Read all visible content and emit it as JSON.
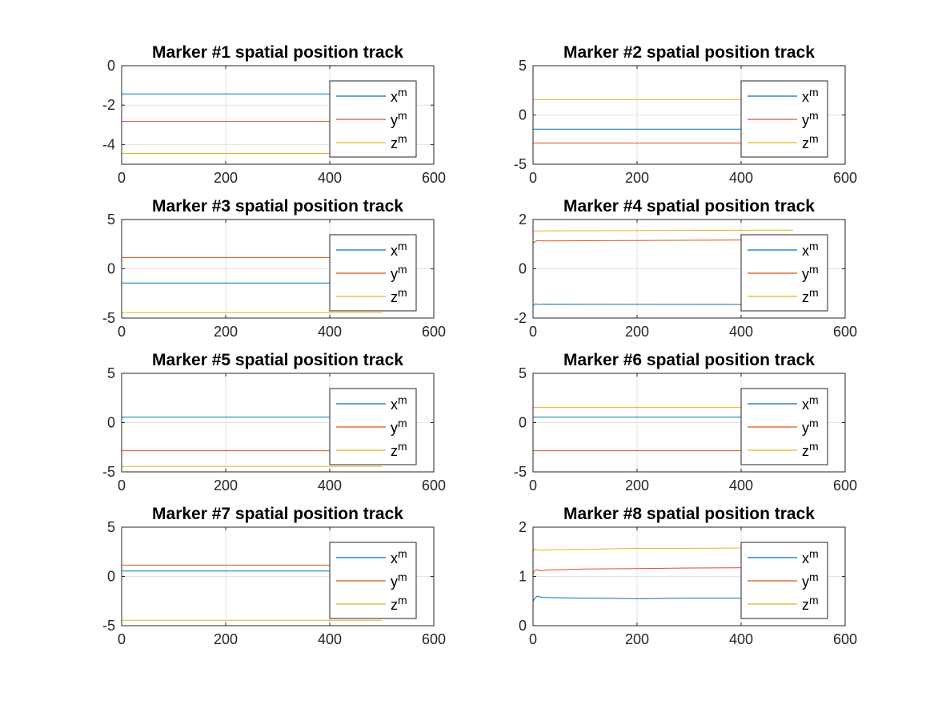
{
  "chart_data": [
    {
      "type": "line",
      "title": "Marker #1 spatial position track",
      "xlim": [
        0,
        600
      ],
      "ylim": [
        -5,
        0
      ],
      "xticks": [
        "0",
        "200",
        "400",
        "600"
      ],
      "yticks": [
        "0",
        "-2",
        "-4"
      ],
      "ytick_values": [
        0,
        -2,
        -4
      ],
      "grid": true,
      "legend_position": "right",
      "series": [
        {
          "name": "x",
          "name_superscript": "m",
          "color": "#0072BD",
          "x": [
            0,
            500
          ],
          "y": [
            -1.43,
            -1.43
          ]
        },
        {
          "name": "y",
          "name_superscript": "m",
          "color": "#D95319",
          "x": [
            0,
            500
          ],
          "y": [
            -2.83,
            -2.83
          ]
        },
        {
          "name": "z",
          "name_superscript": "m",
          "color": "#EDB120",
          "x": [
            0,
            500
          ],
          "y": [
            -4.45,
            -4.45
          ]
        }
      ]
    },
    {
      "type": "line",
      "title": "Marker #2 spatial position track",
      "xlim": [
        0,
        600
      ],
      "ylim": [
        -5,
        5
      ],
      "xticks": [
        "0",
        "200",
        "400",
        "600"
      ],
      "yticks": [
        "5",
        "0",
        "-5"
      ],
      "ytick_values": [
        5,
        0,
        -5
      ],
      "grid": true,
      "legend_position": "right",
      "series": [
        {
          "name": "x",
          "name_superscript": "m",
          "color": "#0072BD",
          "x": [
            0,
            500
          ],
          "y": [
            -1.45,
            -1.45
          ]
        },
        {
          "name": "y",
          "name_superscript": "m",
          "color": "#D95319",
          "x": [
            0,
            500
          ],
          "y": [
            -2.85,
            -2.85
          ]
        },
        {
          "name": "z",
          "name_superscript": "m",
          "color": "#EDB120",
          "x": [
            0,
            500
          ],
          "y": [
            1.55,
            1.55
          ]
        }
      ]
    },
    {
      "type": "line",
      "title": "Marker #3 spatial position track",
      "xlim": [
        0,
        600
      ],
      "ylim": [
        -5,
        5
      ],
      "xticks": [
        "0",
        "200",
        "400",
        "600"
      ],
      "yticks": [
        "5",
        "0",
        "-5"
      ],
      "ytick_values": [
        5,
        0,
        -5
      ],
      "grid": true,
      "legend_position": "right",
      "series": [
        {
          "name": "x",
          "name_superscript": "m",
          "color": "#0072BD",
          "x": [
            0,
            500
          ],
          "y": [
            -1.45,
            -1.45
          ]
        },
        {
          "name": "y",
          "name_superscript": "m",
          "color": "#D95319",
          "x": [
            0,
            500
          ],
          "y": [
            1.15,
            1.15
          ]
        },
        {
          "name": "z",
          "name_superscript": "m",
          "color": "#EDB120",
          "x": [
            0,
            500
          ],
          "y": [
            -4.45,
            -4.45
          ]
        }
      ]
    },
    {
      "type": "line",
      "title": "Marker #4 spatial position track",
      "xlim": [
        0,
        600
      ],
      "ylim": [
        -2,
        2
      ],
      "xticks": [
        "0",
        "200",
        "400",
        "600"
      ],
      "yticks": [
        "2",
        "0",
        "-2"
      ],
      "ytick_values": [
        2,
        0,
        -2
      ],
      "grid": true,
      "legend_position": "right",
      "series": [
        {
          "name": "x",
          "name_superscript": "m",
          "color": "#0072BD",
          "x": [
            0,
            5,
            10,
            20,
            500
          ],
          "y": [
            -1.5,
            -1.42,
            -1.45,
            -1.44,
            -1.45
          ]
        },
        {
          "name": "y",
          "name_superscript": "m",
          "color": "#D95319",
          "x": [
            0,
            5,
            10,
            20,
            500
          ],
          "y": [
            1.05,
            1.12,
            1.15,
            1.13,
            1.18
          ]
        },
        {
          "name": "z",
          "name_superscript": "m",
          "color": "#EDB120",
          "x": [
            0,
            5,
            10,
            20,
            500
          ],
          "y": [
            1.48,
            1.56,
            1.53,
            1.54,
            1.57
          ]
        }
      ]
    },
    {
      "type": "line",
      "title": "Marker #5 spatial position track",
      "xlim": [
        0,
        600
      ],
      "ylim": [
        -5,
        5
      ],
      "xticks": [
        "0",
        "200",
        "400",
        "600"
      ],
      "yticks": [
        "5",
        "0",
        "-5"
      ],
      "ytick_values": [
        5,
        0,
        -5
      ],
      "grid": true,
      "legend_position": "right",
      "series": [
        {
          "name": "x",
          "name_superscript": "m",
          "color": "#0072BD",
          "x": [
            0,
            500
          ],
          "y": [
            0.55,
            0.55
          ]
        },
        {
          "name": "y",
          "name_superscript": "m",
          "color": "#D95319",
          "x": [
            0,
            500
          ],
          "y": [
            -2.85,
            -2.85
          ]
        },
        {
          "name": "z",
          "name_superscript": "m",
          "color": "#EDB120",
          "x": [
            0,
            500
          ],
          "y": [
            -4.45,
            -4.45
          ]
        }
      ]
    },
    {
      "type": "line",
      "title": "Marker #6 spatial position track",
      "xlim": [
        0,
        600
      ],
      "ylim": [
        -5,
        5
      ],
      "xticks": [
        "0",
        "200",
        "400",
        "600"
      ],
      "yticks": [
        "5",
        "0",
        "-5"
      ],
      "ytick_values": [
        5,
        0,
        -5
      ],
      "grid": true,
      "legend_position": "right",
      "series": [
        {
          "name": "x",
          "name_superscript": "m",
          "color": "#0072BD",
          "x": [
            0,
            500
          ],
          "y": [
            0.55,
            0.55
          ]
        },
        {
          "name": "y",
          "name_superscript": "m",
          "color": "#D95319",
          "x": [
            0,
            500
          ],
          "y": [
            -2.85,
            -2.85
          ]
        },
        {
          "name": "z",
          "name_superscript": "m",
          "color": "#EDB120",
          "x": [
            0,
            500
          ],
          "y": [
            1.55,
            1.55
          ]
        }
      ]
    },
    {
      "type": "line",
      "title": "Marker #7 spatial position track",
      "xlim": [
        0,
        600
      ],
      "ylim": [
        -5,
        5
      ],
      "xticks": [
        "0",
        "200",
        "400",
        "600"
      ],
      "yticks": [
        "5",
        "0",
        "-5"
      ],
      "ytick_values": [
        5,
        0,
        -5
      ],
      "grid": true,
      "legend_position": "right",
      "series": [
        {
          "name": "x",
          "name_superscript": "m",
          "color": "#0072BD",
          "x": [
            0,
            500
          ],
          "y": [
            0.55,
            0.55
          ]
        },
        {
          "name": "y",
          "name_superscript": "m",
          "color": "#D95319",
          "x": [
            0,
            500
          ],
          "y": [
            1.15,
            1.15
          ]
        },
        {
          "name": "z",
          "name_superscript": "m",
          "color": "#EDB120",
          "x": [
            0,
            500
          ],
          "y": [
            -4.45,
            -4.45
          ]
        }
      ]
    },
    {
      "type": "line",
      "title": "Marker #8 spatial position track",
      "xlim": [
        0,
        600
      ],
      "ylim": [
        0,
        2
      ],
      "xticks": [
        "0",
        "200",
        "400",
        "600"
      ],
      "yticks": [
        "2",
        "1",
        "0"
      ],
      "ytick_values": [
        2,
        1,
        0
      ],
      "grid": true,
      "legend_position": "right",
      "series": [
        {
          "name": "x",
          "name_superscript": "m",
          "color": "#0072BD",
          "x": [
            0,
            3,
            8,
            15,
            25,
            100,
            200,
            300,
            500
          ],
          "y": [
            0.5,
            0.55,
            0.6,
            0.58,
            0.57,
            0.56,
            0.55,
            0.56,
            0.56
          ]
        },
        {
          "name": "y",
          "name_superscript": "m",
          "color": "#D95319",
          "x": [
            0,
            3,
            8,
            15,
            25,
            100,
            200,
            300,
            500
          ],
          "y": [
            1.05,
            1.12,
            1.14,
            1.11,
            1.13,
            1.15,
            1.16,
            1.17,
            1.18
          ]
        },
        {
          "name": "z",
          "name_superscript": "m",
          "color": "#EDB120",
          "x": [
            0,
            3,
            8,
            15,
            25,
            100,
            200,
            300,
            500
          ],
          "y": [
            1.5,
            1.56,
            1.54,
            1.53,
            1.54,
            1.55,
            1.57,
            1.57,
            1.58
          ]
        }
      ]
    }
  ]
}
